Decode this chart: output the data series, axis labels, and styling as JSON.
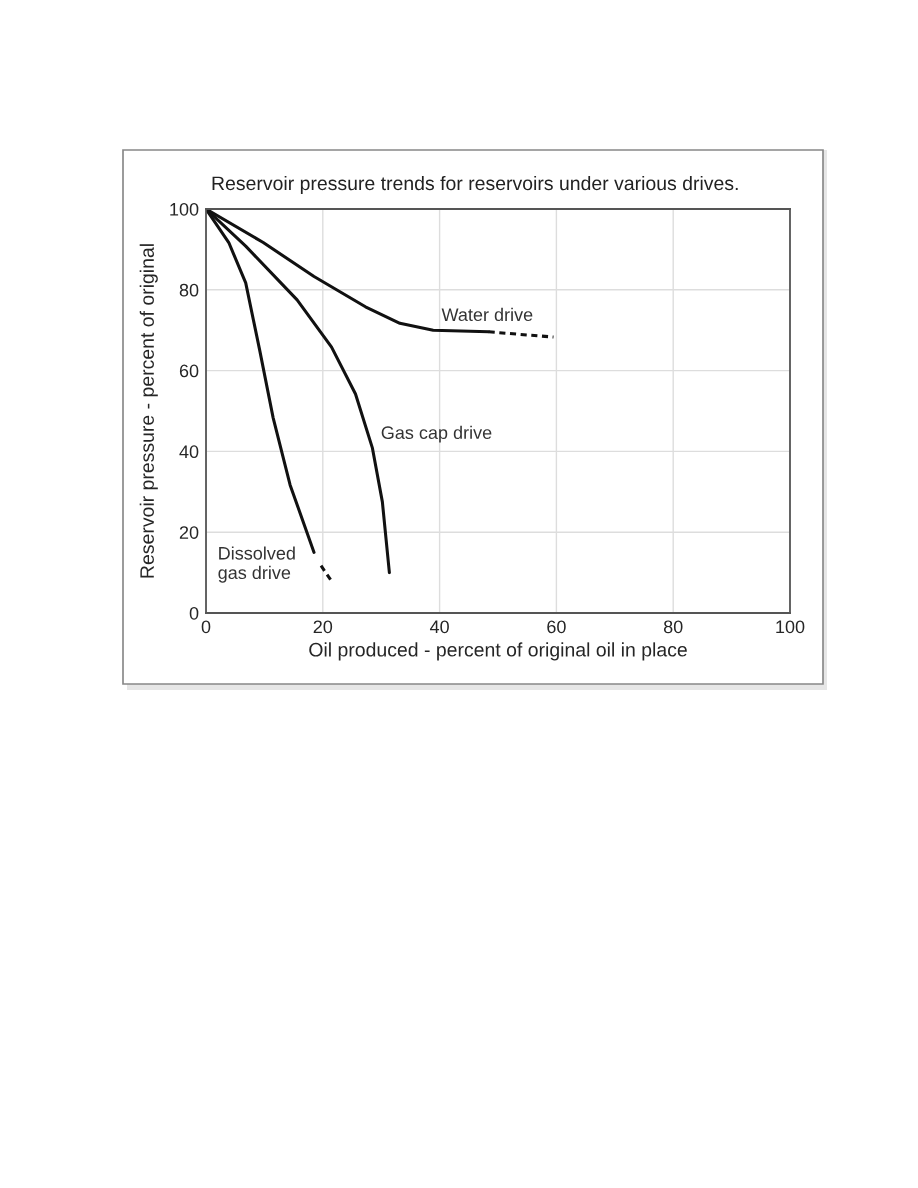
{
  "chart_data": {
    "type": "line",
    "title": "Reservoir pressure trends for reservoirs under various drives.",
    "xlabel": "Oil produced - percent of original oil in place",
    "ylabel": "Reservoir pressure - percent of original",
    "series": [
      {
        "color": "#111111",
        "line_style": "solid",
        "x": [
          0,
          9.8,
          18.5,
          27.3,
          33.2,
          38.9,
          48.4
        ],
        "values": [
          100,
          91.7,
          83.3,
          75.8,
          71.7,
          70,
          69.6
        ]
      },
      {
        "color": "#111111",
        "line_style": "dashed",
        "x": [
          48.4,
          59.5
        ],
        "values": [
          69.6,
          68.3
        ]
      },
      {
        "color": "#111111",
        "line_style": "solid",
        "x": [
          0,
          6.8,
          15.6,
          21.5,
          25.6,
          28.5,
          30.2,
          31.4
        ],
        "values": [
          100,
          90.8,
          77.5,
          65.8,
          54.2,
          40.8,
          27.5,
          10
        ]
      },
      {
        "color": "#111111",
        "line_style": "solid",
        "x": [
          0,
          3.9,
          6.8,
          9.2,
          11.5,
          14.4,
          18.5
        ],
        "values": [
          100,
          91.7,
          81.7,
          65,
          48.3,
          31.7,
          15
        ]
      },
      {
        "color": "#111111",
        "line_style": "dashed",
        "x": [
          19.7,
          21.5
        ],
        "values": [
          11.7,
          7.9
        ]
      }
    ],
    "annotations": [
      {
        "text": "Water drive",
        "x": 38.9,
        "y": 70
      },
      {
        "text": "Gas cap drive",
        "x": 28.5,
        "y": 40.8
      },
      "Dissolved\ngas drive"
    ],
    "xlim": [
      0,
      100
    ],
    "ylim": [
      0,
      100
    ],
    "xticks": [
      0,
      20,
      40,
      60,
      80,
      100
    ],
    "yticks": [
      0,
      20,
      40,
      60,
      80,
      100
    ],
    "grid": true
  }
}
